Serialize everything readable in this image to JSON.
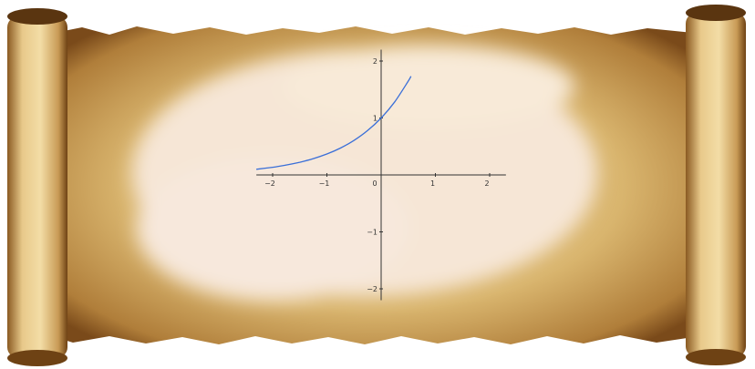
{
  "chart_data": {
    "type": "line",
    "title": "",
    "xlabel": "",
    "ylabel": "",
    "xlim": [
      -2.3,
      2.3
    ],
    "ylim": [
      -2.2,
      2.2
    ],
    "x_ticks": [
      -2,
      -1,
      0,
      1,
      2
    ],
    "y_ticks": [
      -2,
      -1,
      1,
      2
    ],
    "x_tick_labels": [
      "−2",
      "−1",
      "0",
      "1",
      "2"
    ],
    "y_tick_labels": [
      "−2",
      "−1",
      "1",
      "2"
    ],
    "grid": false,
    "legend": "none",
    "series": [
      {
        "color": "#3a6fd8",
        "x": [
          -2.3,
          -2.0,
          -1.75,
          -1.5,
          -1.25,
          -1.0,
          -0.75,
          -0.5,
          -0.25,
          0.0,
          0.25,
          0.5,
          0.55
        ],
        "y": [
          0.1,
          0.135,
          0.174,
          0.223,
          0.287,
          0.368,
          0.472,
          0.607,
          0.779,
          1.0,
          1.284,
          1.649,
          1.733
        ]
      }
    ]
  },
  "colors": {
    "parchment": "#d9b56e",
    "parchment_edge": "#7a4a1a",
    "paper_center": "#f7e9df",
    "axis": "#333333"
  }
}
